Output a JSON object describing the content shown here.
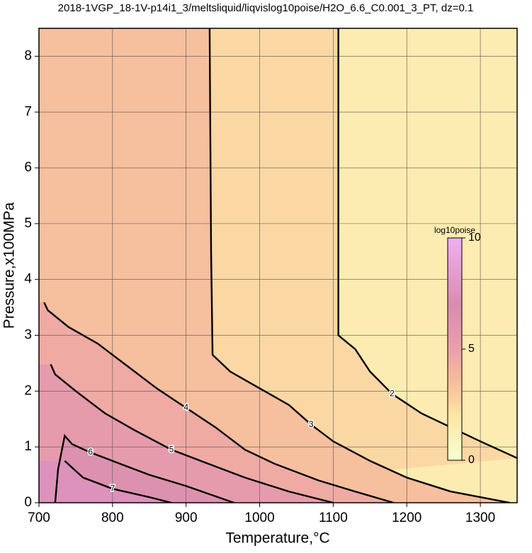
{
  "chart_data": {
    "type": "contour",
    "title": "2018-1VGP_18-1V-p14i1_3/meltsliquid/liqvislog10poise/H2O_6.6_C0.001_3_PT, dz=0.1",
    "xlabel": "Temperature,°C",
    "ylabel": "Pressure,x100MPa",
    "xlim": [
      700,
      1350
    ],
    "ylim": [
      0,
      8.5
    ],
    "xticks": [
      700,
      800,
      900,
      1000,
      1100,
      1200,
      1300
    ],
    "yticks": [
      0,
      1,
      2,
      3,
      4,
      5,
      6,
      7,
      8
    ],
    "grid": true,
    "colorbar_label": "log10poise",
    "clim": [
      0,
      10
    ],
    "colorbar_ticks": [
      0,
      5,
      10
    ],
    "colorscale": [
      [
        0,
        "#f8ffd0"
      ],
      [
        2,
        "#fde6a6"
      ],
      [
        3,
        "#f9caa0"
      ],
      [
        4,
        "#f3b49c"
      ],
      [
        5,
        "#e9a0aa"
      ],
      [
        7,
        "#d88cb0"
      ],
      [
        10,
        "#f0b0f0"
      ]
    ],
    "contours": [
      {
        "level": 2,
        "x": [
          1107,
          1107,
          1130,
          1150,
          1180,
          1220,
          1260,
          1300,
          1350
        ],
        "y": [
          8.5,
          3.0,
          2.75,
          2.35,
          1.95,
          1.6,
          1.35,
          1.1,
          0.8
        ]
      },
      {
        "level": 3,
        "x": [
          932,
          934,
          936,
          960,
          1000,
          1040,
          1070,
          1100,
          1150,
          1200,
          1260,
          1340
        ],
        "y": [
          8.5,
          4.5,
          2.65,
          2.35,
          2.05,
          1.75,
          1.4,
          1.1,
          0.75,
          0.45,
          0.2,
          0
        ]
      },
      {
        "level": 4,
        "x": [
          707,
          712,
          740,
          780,
          820,
          860,
          900,
          940,
          980,
          1020,
          1080,
          1130,
          1182
        ],
        "y": [
          3.59,
          3.45,
          3.15,
          2.85,
          2.45,
          2.05,
          1.7,
          1.35,
          0.95,
          0.7,
          0.4,
          0.2,
          0
        ]
      },
      {
        "level": 5,
        "x": [
          716,
          722,
          750,
          790,
          830,
          880,
          930,
          980,
          1040,
          1100
        ],
        "y": [
          2.48,
          2.3,
          2.0,
          1.6,
          1.3,
          0.95,
          0.7,
          0.45,
          0.2,
          0
        ]
      },
      {
        "level": 6,
        "x": [
          722,
          726,
          735,
          745,
          770,
          810,
          850,
          900,
          965
        ],
        "y": [
          0,
          0.6,
          1.2,
          1.05,
          0.9,
          0.7,
          0.5,
          0.3,
          0
        ]
      },
      {
        "level": 7,
        "x": [
          735,
          760,
          800,
          850,
          880
        ],
        "y": [
          0.75,
          0.45,
          0.25,
          0.1,
          0
        ]
      }
    ]
  }
}
